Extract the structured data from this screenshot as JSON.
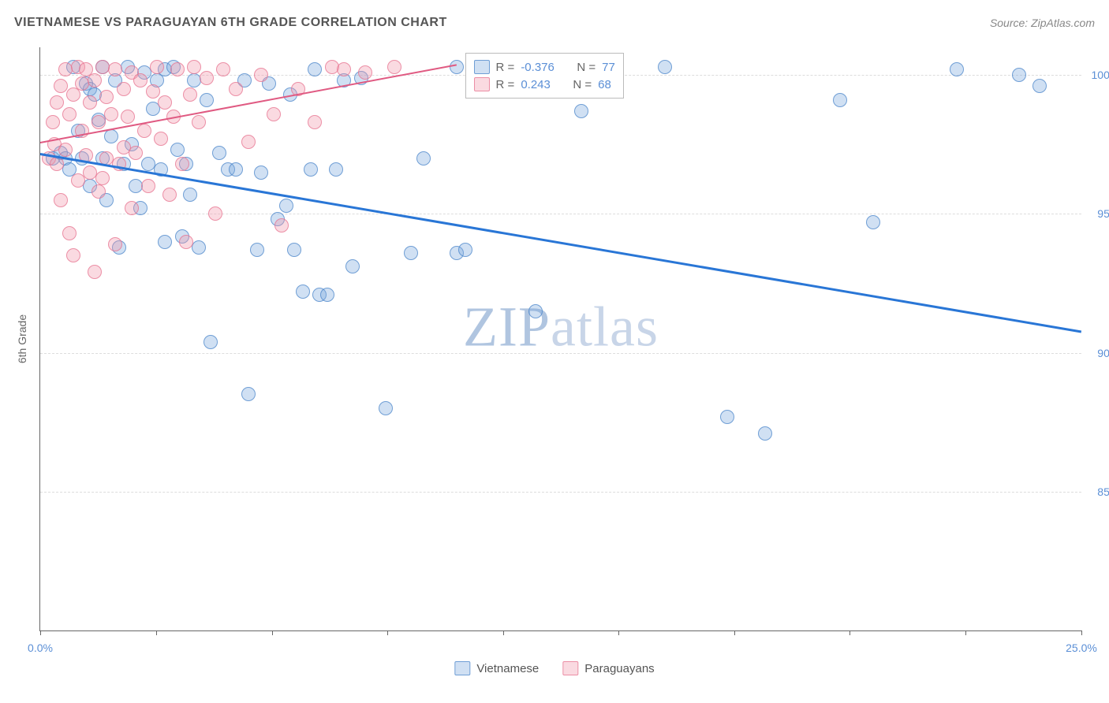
{
  "header": {
    "title": "VIETNAMESE VS PARAGUAYAN 6TH GRADE CORRELATION CHART",
    "source": "Source: ZipAtlas.com"
  },
  "chart": {
    "type": "scatter",
    "ylabel": "6th Grade",
    "xlim": [
      0,
      25
    ],
    "ylim": [
      80,
      101
    ],
    "yticks": [
      85.0,
      90.0,
      95.0,
      100.0
    ],
    "ytick_labels": [
      "85.0%",
      "90.0%",
      "95.0%",
      "100.0%"
    ],
    "xtick_positions": [
      0,
      2.78,
      5.56,
      8.33,
      11.11,
      13.89,
      16.67,
      19.44,
      22.22,
      25
    ],
    "xtick_labels": {
      "0": "0.0%",
      "25": "25.0%"
    },
    "colors": {
      "blue_fill": "rgba(120,165,220,0.35)",
      "blue_stroke": "#4a82c8",
      "pink_fill": "rgba(240,150,170,0.35)",
      "pink_stroke": "#e66e8c",
      "grid": "#dddddd",
      "axis": "#666666",
      "text_blue": "#5b8fd6",
      "background": "#ffffff"
    },
    "marker_size": 16,
    "series": [
      {
        "name": "Vietnamese",
        "color": "blue",
        "R": "-0.376",
        "N": "77",
        "trendline": {
          "x1": 0,
          "y1": 97.2,
          "x2": 25,
          "y2": 90.8,
          "color": "#2976d6",
          "width": 2.5
        },
        "points": [
          [
            0.3,
            97.0
          ],
          [
            0.5,
            97.2
          ],
          [
            0.6,
            97.0
          ],
          [
            0.7,
            96.6
          ],
          [
            0.8,
            100.3
          ],
          [
            0.9,
            98.0
          ],
          [
            1.0,
            97.0
          ],
          [
            1.1,
            99.7
          ],
          [
            1.2,
            96.0
          ],
          [
            1.2,
            99.5
          ],
          [
            1.3,
            99.3
          ],
          [
            1.4,
            98.4
          ],
          [
            1.5,
            100.3
          ],
          [
            1.5,
            97.0
          ],
          [
            1.6,
            95.5
          ],
          [
            1.7,
            97.8
          ],
          [
            1.8,
            99.8
          ],
          [
            1.9,
            93.8
          ],
          [
            2.0,
            96.8
          ],
          [
            2.1,
            100.3
          ],
          [
            2.2,
            97.5
          ],
          [
            2.3,
            96.0
          ],
          [
            2.4,
            95.2
          ],
          [
            2.5,
            100.1
          ],
          [
            2.6,
            96.8
          ],
          [
            2.7,
            98.8
          ],
          [
            2.8,
            99.8
          ],
          [
            2.9,
            96.6
          ],
          [
            3.0,
            100.2
          ],
          [
            3.0,
            94.0
          ],
          [
            3.2,
            100.3
          ],
          [
            3.3,
            97.3
          ],
          [
            3.4,
            94.2
          ],
          [
            3.5,
            96.8
          ],
          [
            3.6,
            95.7
          ],
          [
            3.7,
            99.8
          ],
          [
            3.8,
            93.8
          ],
          [
            4.0,
            99.1
          ],
          [
            4.1,
            90.4
          ],
          [
            4.3,
            97.2
          ],
          [
            4.5,
            96.6
          ],
          [
            4.7,
            96.6
          ],
          [
            4.9,
            99.8
          ],
          [
            5.0,
            88.5
          ],
          [
            5.2,
            93.7
          ],
          [
            5.3,
            96.5
          ],
          [
            5.5,
            99.7
          ],
          [
            5.7,
            94.8
          ],
          [
            5.9,
            95.3
          ],
          [
            6.0,
            99.3
          ],
          [
            6.1,
            93.7
          ],
          [
            6.3,
            92.2
          ],
          [
            6.5,
            96.6
          ],
          [
            6.6,
            100.2
          ],
          [
            6.7,
            92.1
          ],
          [
            6.9,
            92.1
          ],
          [
            7.1,
            96.6
          ],
          [
            7.3,
            99.8
          ],
          [
            7.5,
            93.1
          ],
          [
            7.7,
            99.9
          ],
          [
            8.3,
            88.0
          ],
          [
            8.9,
            93.6
          ],
          [
            9.2,
            97.0
          ],
          [
            10.0,
            93.6
          ],
          [
            10.0,
            100.3
          ],
          [
            10.2,
            93.7
          ],
          [
            11.9,
            91.5
          ],
          [
            13.0,
            98.7
          ],
          [
            13.5,
            100.1
          ],
          [
            15.0,
            100.3
          ],
          [
            16.5,
            87.7
          ],
          [
            17.4,
            87.1
          ],
          [
            19.2,
            99.1
          ],
          [
            20.0,
            94.7
          ],
          [
            22.0,
            100.2
          ],
          [
            23.5,
            100.0
          ],
          [
            24.0,
            99.6
          ]
        ]
      },
      {
        "name": "Paraguayans",
        "color": "pink",
        "R": "0.243",
        "N": "68",
        "trendline": {
          "x1": 0,
          "y1": 97.6,
          "x2": 10,
          "y2": 100.4,
          "color": "#e05a82",
          "width": 2
        },
        "points": [
          [
            0.2,
            97.0
          ],
          [
            0.3,
            98.3
          ],
          [
            0.35,
            97.5
          ],
          [
            0.4,
            99.0
          ],
          [
            0.4,
            96.8
          ],
          [
            0.5,
            99.6
          ],
          [
            0.5,
            95.5
          ],
          [
            0.6,
            100.2
          ],
          [
            0.6,
            97.3
          ],
          [
            0.7,
            98.6
          ],
          [
            0.7,
            94.3
          ],
          [
            0.8,
            99.3
          ],
          [
            0.8,
            93.5
          ],
          [
            0.9,
            100.3
          ],
          [
            0.9,
            96.2
          ],
          [
            1.0,
            98.0
          ],
          [
            1.0,
            99.7
          ],
          [
            1.1,
            97.1
          ],
          [
            1.1,
            100.2
          ],
          [
            1.2,
            99.0
          ],
          [
            1.2,
            96.5
          ],
          [
            1.3,
            99.8
          ],
          [
            1.3,
            92.9
          ],
          [
            1.4,
            98.3
          ],
          [
            1.4,
            95.8
          ],
          [
            1.5,
            100.3
          ],
          [
            1.5,
            96.3
          ],
          [
            1.6,
            99.2
          ],
          [
            1.6,
            97.0
          ],
          [
            1.7,
            98.6
          ],
          [
            1.8,
            100.2
          ],
          [
            1.8,
            93.9
          ],
          [
            1.9,
            96.8
          ],
          [
            2.0,
            99.5
          ],
          [
            2.0,
            97.4
          ],
          [
            2.1,
            98.5
          ],
          [
            2.2,
            100.1
          ],
          [
            2.2,
            95.2
          ],
          [
            2.3,
            97.2
          ],
          [
            2.4,
            99.8
          ],
          [
            2.5,
            98.0
          ],
          [
            2.6,
            96.0
          ],
          [
            2.7,
            99.4
          ],
          [
            2.8,
            100.3
          ],
          [
            2.9,
            97.7
          ],
          [
            3.0,
            99.0
          ],
          [
            3.1,
            95.7
          ],
          [
            3.2,
            98.5
          ],
          [
            3.3,
            100.2
          ],
          [
            3.4,
            96.8
          ],
          [
            3.5,
            94.0
          ],
          [
            3.6,
            99.3
          ],
          [
            3.7,
            100.3
          ],
          [
            3.8,
            98.3
          ],
          [
            4.0,
            99.9
          ],
          [
            4.2,
            95.0
          ],
          [
            4.4,
            100.2
          ],
          [
            4.7,
            99.5
          ],
          [
            5.0,
            97.6
          ],
          [
            5.3,
            100.0
          ],
          [
            5.6,
            98.6
          ],
          [
            5.8,
            94.6
          ],
          [
            6.2,
            99.5
          ],
          [
            6.6,
            98.3
          ],
          [
            7.0,
            100.3
          ],
          [
            7.3,
            100.2
          ],
          [
            7.8,
            100.1
          ],
          [
            8.5,
            100.3
          ]
        ]
      }
    ]
  },
  "legend": {
    "items": [
      {
        "label": "Vietnamese",
        "color": "blue"
      },
      {
        "label": "Paraguayans",
        "color": "pink"
      }
    ]
  },
  "watermark": {
    "zip": "ZIP",
    "atlas": "atlas"
  }
}
